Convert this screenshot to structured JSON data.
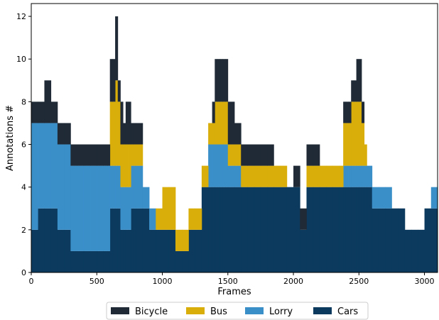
{
  "chart_data": {
    "type": "area",
    "stacked": true,
    "step": true,
    "xlabel": "Frames",
    "ylabel": "Annotations #",
    "xlim": [
      0,
      3100
    ],
    "ylim": [
      0,
      12.6
    ],
    "xticks": [
      0,
      500,
      1000,
      1500,
      2000,
      2500,
      3000
    ],
    "yticks": [
      0,
      2,
      4,
      6,
      8,
      10,
      12
    ],
    "legend_position": "bottom-center",
    "colors": {
      "Bicycle": "#1f2a36",
      "Bus": "#d9ae0a",
      "Lorry": "#3a8fc9",
      "Cars": "#0b3a5e"
    },
    "x": [
      0,
      50,
      100,
      150,
      200,
      250,
      300,
      350,
      400,
      450,
      500,
      550,
      580,
      600,
      620,
      640,
      660,
      680,
      700,
      720,
      740,
      760,
      780,
      800,
      850,
      900,
      950,
      1000,
      1050,
      1100,
      1150,
      1200,
      1250,
      1300,
      1350,
      1380,
      1400,
      1420,
      1440,
      1460,
      1480,
      1500,
      1550,
      1600,
      1650,
      1700,
      1750,
      1800,
      1850,
      1900,
      1950,
      2000,
      2050,
      2100,
      2150,
      2200,
      2250,
      2300,
      2350,
      2380,
      2400,
      2420,
      2440,
      2460,
      2480,
      2500,
      2520,
      2540,
      2560,
      2600,
      2650,
      2700,
      2750,
      2800,
      2850,
      2900,
      2950,
      3000,
      3050
    ],
    "series": [
      {
        "name": "Cars",
        "values": [
          2,
          3,
          3,
          3,
          2,
          2,
          1,
          1,
          1,
          1,
          1,
          1,
          1,
          3,
          3,
          3,
          3,
          2,
          2,
          2,
          2,
          3,
          3,
          3,
          3,
          2,
          2,
          2,
          2,
          1,
          1,
          2,
          2,
          4,
          4,
          4,
          4,
          4,
          4,
          4,
          4,
          4,
          4,
          4,
          4,
          4,
          4,
          4,
          4,
          4,
          4,
          4,
          2,
          4,
          4,
          4,
          4,
          4,
          4,
          4,
          4,
          4,
          4,
          4,
          4,
          4,
          4,
          4,
          4,
          3,
          3,
          3,
          3,
          3,
          2,
          2,
          2,
          3,
          3
        ]
      },
      {
        "name": "Lorry",
        "values": [
          5,
          4,
          4,
          4,
          4,
          4,
          4,
          4,
          4,
          4,
          4,
          4,
          4,
          2,
          2,
          2,
          2,
          2,
          2,
          2,
          2,
          2,
          2,
          2,
          1,
          1,
          0,
          0,
          0,
          0,
          0,
          0,
          0,
          0,
          2,
          2,
          2,
          2,
          2,
          2,
          2,
          1,
          1,
          0,
          0,
          0,
          0,
          0,
          0,
          0,
          0,
          0,
          0,
          0,
          0,
          0,
          0,
          0,
          0,
          1,
          1,
          1,
          1,
          1,
          1,
          1,
          1,
          1,
          1,
          1,
          1,
          1,
          0,
          0,
          0,
          0,
          0,
          0,
          1
        ]
      },
      {
        "name": "Bus",
        "values": [
          0,
          0,
          0,
          0,
          0,
          0,
          0,
          0,
          0,
          0,
          0,
          0,
          0,
          3,
          3,
          4,
          3,
          2,
          2,
          2,
          2,
          1,
          1,
          1,
          0,
          0,
          1,
          2,
          2,
          1,
          1,
          1,
          1,
          1,
          1,
          1,
          2,
          2,
          2,
          2,
          2,
          1,
          1,
          1,
          1,
          1,
          1,
          1,
          1,
          1,
          0,
          0,
          0,
          1,
          1,
          1,
          1,
          1,
          1,
          2,
          2,
          2,
          3,
          3,
          3,
          3,
          2,
          1,
          0,
          0,
          0,
          0,
          0,
          0,
          0,
          0,
          0,
          0,
          0
        ]
      },
      {
        "name": "Bicycle",
        "values": [
          1,
          1,
          2,
          1,
          1,
          1,
          1,
          1,
          1,
          1,
          1,
          1,
          1,
          2,
          2,
          3,
          1,
          2,
          1,
          2,
          2,
          1,
          1,
          1,
          0,
          0,
          0,
          0,
          0,
          0,
          0,
          0,
          0,
          0,
          0,
          1,
          2,
          2,
          2,
          2,
          2,
          2,
          1,
          1,
          1,
          1,
          1,
          1,
          0,
          0,
          0,
          1,
          1,
          1,
          1,
          0,
          0,
          0,
          0,
          1,
          1,
          1,
          1,
          1,
          2,
          2,
          1,
          0,
          0,
          0,
          0,
          0,
          0,
          0,
          0,
          0,
          0,
          0,
          0
        ]
      }
    ],
    "legend": [
      "Bicycle",
      "Bus",
      "Lorry",
      "Cars"
    ]
  }
}
